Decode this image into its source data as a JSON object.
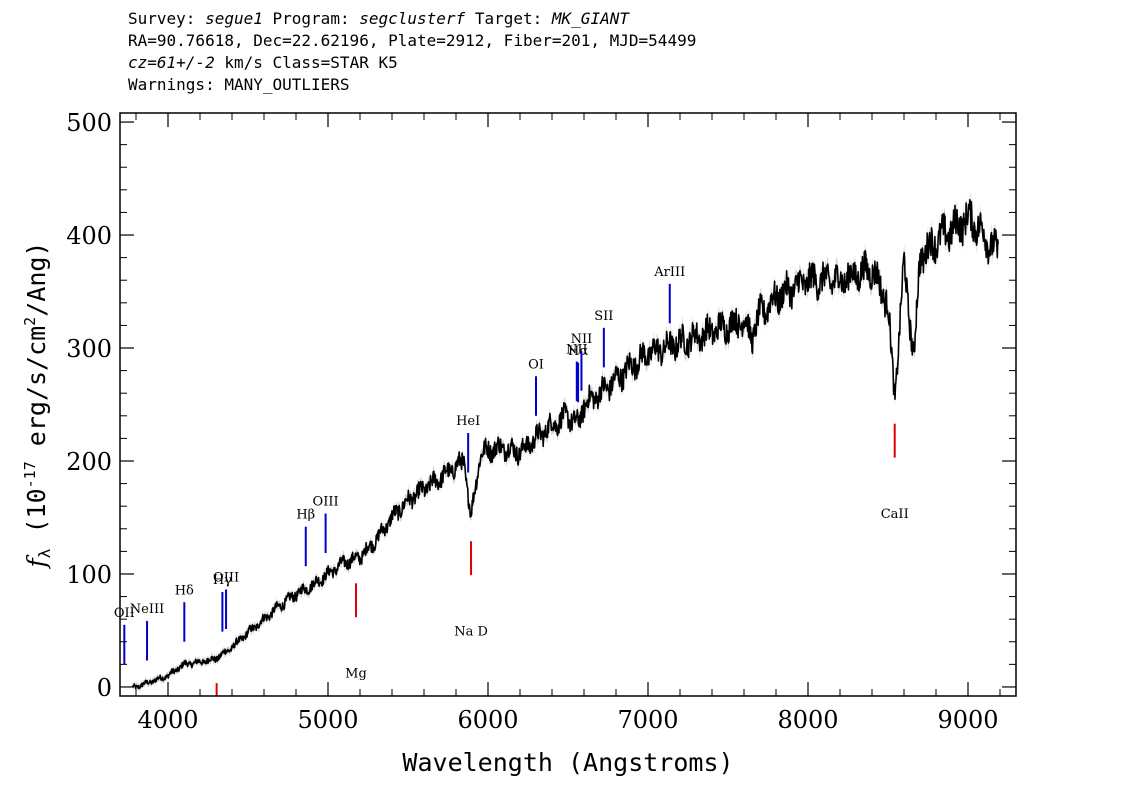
{
  "header": {
    "survey_label": "Survey:",
    "survey": "segue1",
    "program_label": "Program:",
    "program": "segclusterf",
    "target_label": "Target:",
    "target": "MK_GIANT",
    "line2": "RA=90.76618, Dec=22.62196, Plate=2912, Fiber=201, MJD=54499",
    "cz": "cz=61+/-2",
    "line3_rest": " km/s Class=STAR K5",
    "line4": "Warnings: MANY_OUTLIERS"
  },
  "chart_data": {
    "type": "line",
    "xlabel": "Wavelength (Angstroms)",
    "ylabel": "f_λ (10^-17 erg/s/cm^2/Ang)",
    "xlim": [
      3700,
      9300
    ],
    "ylim": [
      -8,
      508
    ],
    "xticks": [
      4000,
      5000,
      6000,
      7000,
      8000,
      9000
    ],
    "yticks": [
      0,
      100,
      200,
      300,
      400,
      500
    ],
    "grid": false,
    "series": [
      {
        "color": "#000000",
        "x": [
          3800,
          3900,
          4000,
          4100,
          4200,
          4300,
          4400,
          4500,
          4600,
          4700,
          4800,
          4900,
          5000,
          5100,
          5200,
          5300,
          5400,
          5500,
          5600,
          5700,
          5800,
          5850,
          5893,
          5950,
          6000,
          6100,
          6200,
          6300,
          6400,
          6500,
          6563,
          6600,
          6700,
          6800,
          6900,
          7000,
          7200,
          7400,
          7600,
          7650,
          7700,
          7800,
          8000,
          8200,
          8400,
          8498,
          8542,
          8600,
          8662,
          8700,
          8800,
          8900,
          9000,
          9050,
          9100,
          9200
        ],
        "y": [
          0,
          5,
          10,
          20,
          22,
          25,
          35,
          48,
          60,
          72,
          82,
          90,
          100,
          110,
          115,
          130,
          150,
          165,
          175,
          185,
          195,
          200,
          150,
          205,
          210,
          212,
          208,
          220,
          232,
          240,
          232,
          250,
          260,
          272,
          285,
          295,
          305,
          315,
          325,
          310,
          330,
          345,
          360,
          360,
          370,
          340,
          255,
          375,
          290,
          380,
          395,
          405,
          415,
          410,
          400,
          380
        ]
      }
    ],
    "emission_lines": [
      {
        "label": "OII",
        "x": 3727
      },
      {
        "label": "NeIII",
        "x": 3869
      },
      {
        "label": "Hδ",
        "x": 4102
      },
      {
        "label": "Hγ",
        "x": 4340
      },
      {
        "label": "OIII",
        "x": 4363
      },
      {
        "label": "Hβ",
        "x": 4861
      },
      {
        "label": "OIII",
        "x": 4985
      },
      {
        "label": "HeI",
        "x": 5876
      },
      {
        "label": "OI",
        "x": 6300
      },
      {
        "label": "NII",
        "x": 6555
      },
      {
        "label": "Hα",
        "x": 6563
      },
      {
        "label": "NII",
        "x": 6584
      },
      {
        "label": "SII",
        "x": 6724
      },
      {
        "label": "ArIII",
        "x": 7136
      }
    ],
    "absorption_lines": [
      {
        "label": "",
        "x": 4304
      },
      {
        "label": "Mg",
        "x": 5175
      },
      {
        "label": "Na D",
        "x": 5894
      },
      {
        "label": "CaII",
        "x": 8542
      }
    ],
    "colors": {
      "spectrum": "#000000",
      "error_band": "#999999",
      "emission": "#0000cc",
      "absorption": "#dd0000"
    }
  }
}
